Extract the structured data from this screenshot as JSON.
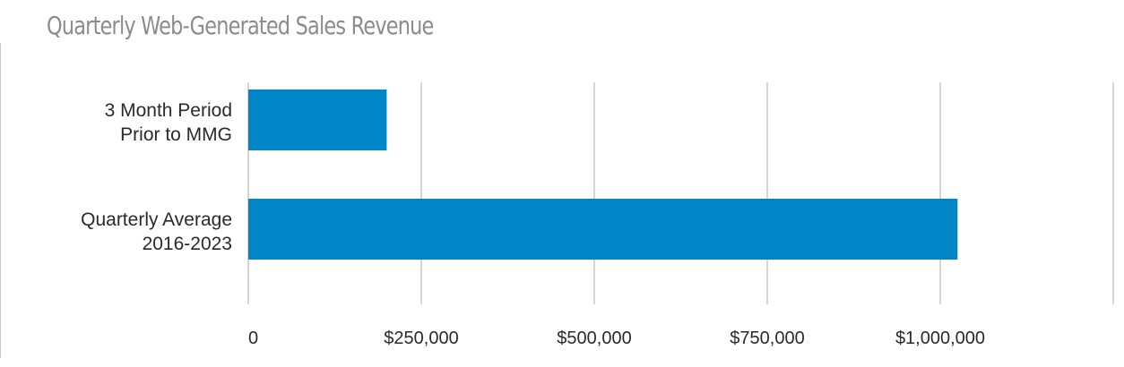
{
  "chart_data": {
    "type": "bar",
    "orientation": "horizontal",
    "title": "Quarterly Web-Generated Sales Revenue",
    "categories": [
      [
        "3 Month Period",
        "Prior to MMG"
      ],
      [
        "Quarterly Average",
        "2016-2023"
      ]
    ],
    "values": [
      200000,
      1025000
    ],
    "xlim": [
      0,
      1250000
    ],
    "ticks": [
      0,
      250000,
      500000,
      750000,
      1000000
    ],
    "tick_labels": [
      "0",
      "$250,000",
      "$500,000",
      "$750,000",
      "$1,000,000"
    ],
    "xlabel": "",
    "ylabel": "",
    "grid": true,
    "legend": "none",
    "colors": {
      "bar": "#0086c6",
      "grid": "#c8c8c8",
      "title": "#8c8c8c",
      "text": "#2a2a2a"
    }
  }
}
